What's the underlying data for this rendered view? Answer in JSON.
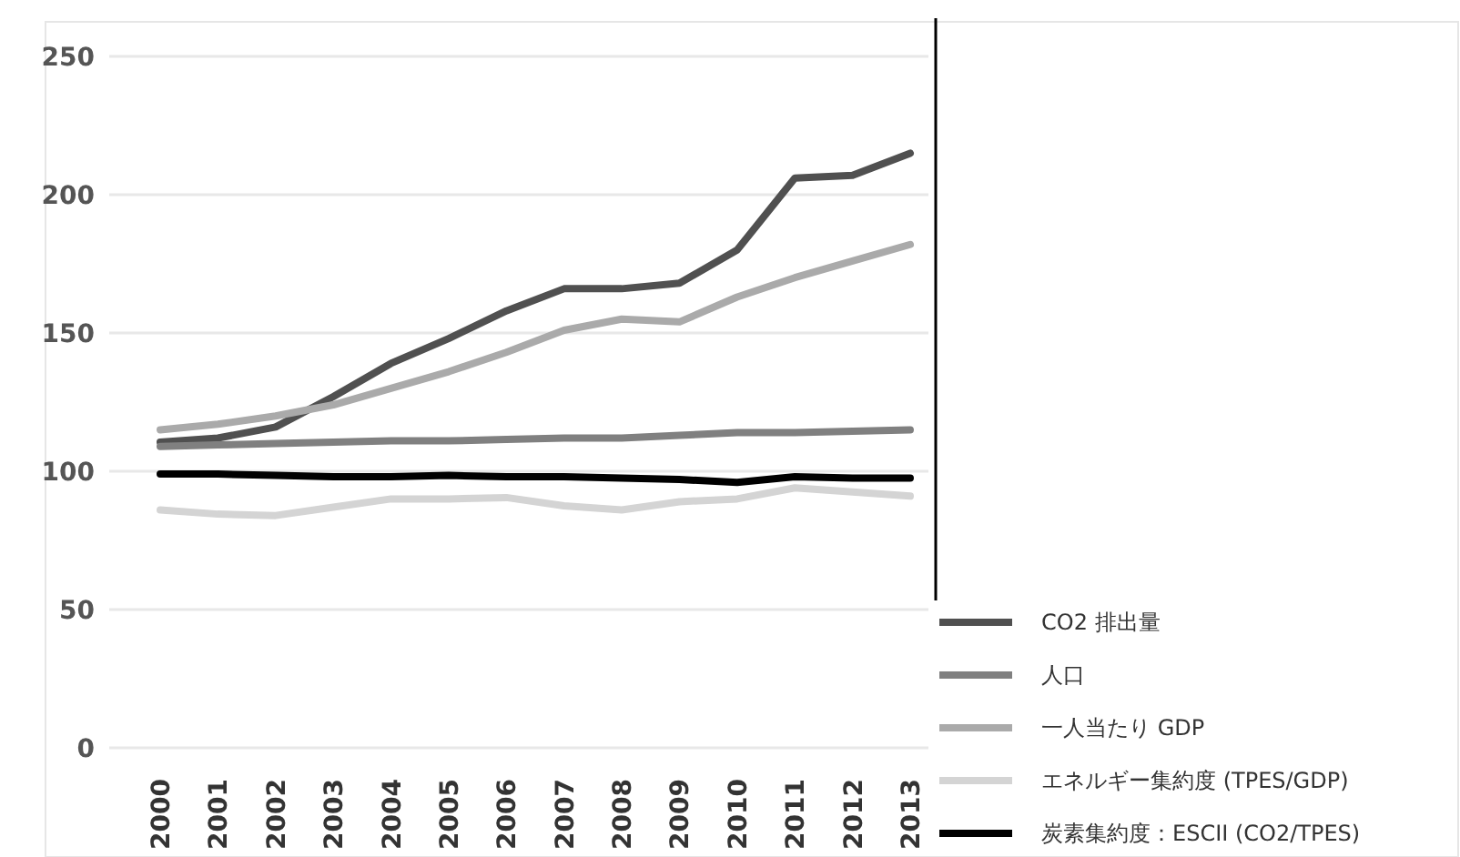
{
  "chart_data": {
    "type": "line",
    "categories": [
      "2000",
      "2001",
      "2002",
      "2003",
      "2004",
      "2005",
      "2006",
      "2007",
      "2008",
      "2009",
      "2010",
      "2011",
      "2012",
      "2013"
    ],
    "series": [
      {
        "name": "CO2 排出量",
        "color": "#505050",
        "values": [
          110.5,
          112,
          116,
          127,
          139,
          148,
          158,
          166,
          166,
          168,
          180,
          206,
          207,
          215
        ]
      },
      {
        "name": "人口",
        "color": "#808080",
        "values": [
          109,
          109.5,
          110,
          110.5,
          111,
          111,
          111.5,
          112,
          112,
          113,
          114,
          114,
          114.5,
          115
        ]
      },
      {
        "name": "一人当たり GDP",
        "color": "#aaaaaa",
        "values": [
          115,
          117,
          120,
          124,
          130,
          136,
          143,
          151,
          155,
          154,
          163,
          170,
          176,
          182
        ]
      },
      {
        "name": "エネルギー集約度 (TPES/GDP)",
        "color": "#d4d4d4",
        "values": [
          86,
          84.5,
          84,
          87,
          90,
          90,
          90.5,
          87.5,
          86,
          89,
          90,
          94,
          92.5,
          91
        ]
      },
      {
        "name": "炭素集約度：ESCII (CO2/TPES)",
        "color": "#000000",
        "values": [
          99,
          99,
          98.5,
          98,
          98,
          98.5,
          98,
          98,
          97.5,
          97,
          96,
          98,
          97.5,
          97.5
        ]
      }
    ],
    "ylim": [
      0,
      250
    ],
    "yticks": [
      0,
      50,
      100,
      150,
      200,
      250
    ],
    "grid": "y",
    "legend": "bottom right",
    "marker": "none",
    "line_style": "solid"
  }
}
